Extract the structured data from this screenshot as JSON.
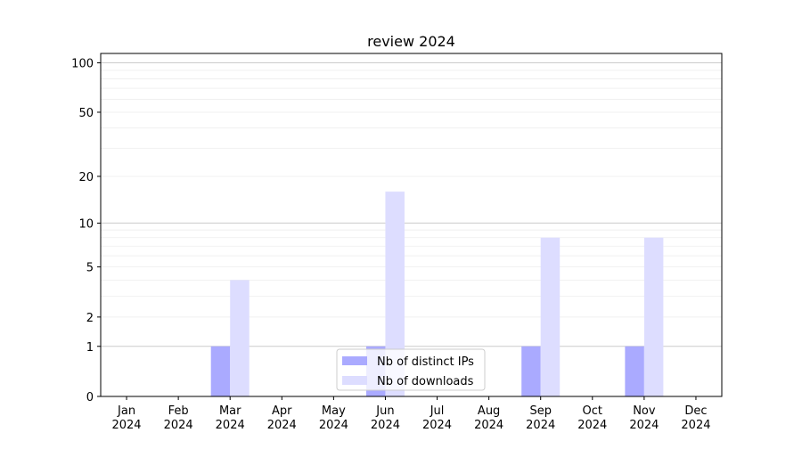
{
  "chart_data": {
    "type": "bar",
    "title": "review 2024",
    "categories": [
      "Jan\n2024",
      "Feb\n2024",
      "Mar\n2024",
      "Apr\n2024",
      "May\n2024",
      "Jun\n2024",
      "Jul\n2024",
      "Aug\n2024",
      "Sep\n2024",
      "Oct\n2024",
      "Nov\n2024",
      "Dec\n2024"
    ],
    "series": [
      {
        "name": "Nb of distinct IPs",
        "color": "#aaaaff",
        "values": [
          0,
          0,
          1,
          0,
          0,
          1,
          0,
          0,
          1,
          0,
          1,
          0
        ]
      },
      {
        "name": "Nb of downloads",
        "color": "#ddddff",
        "values": [
          0,
          0,
          4,
          0,
          0,
          16,
          0,
          0,
          8,
          0,
          8,
          0
        ]
      }
    ],
    "yscale": "log(1+y)",
    "yticks": [
      0,
      1,
      2,
      5,
      10,
      20,
      50,
      100
    ],
    "ylim": [
      0,
      114
    ],
    "grid": true,
    "legend": "bottom-center"
  }
}
